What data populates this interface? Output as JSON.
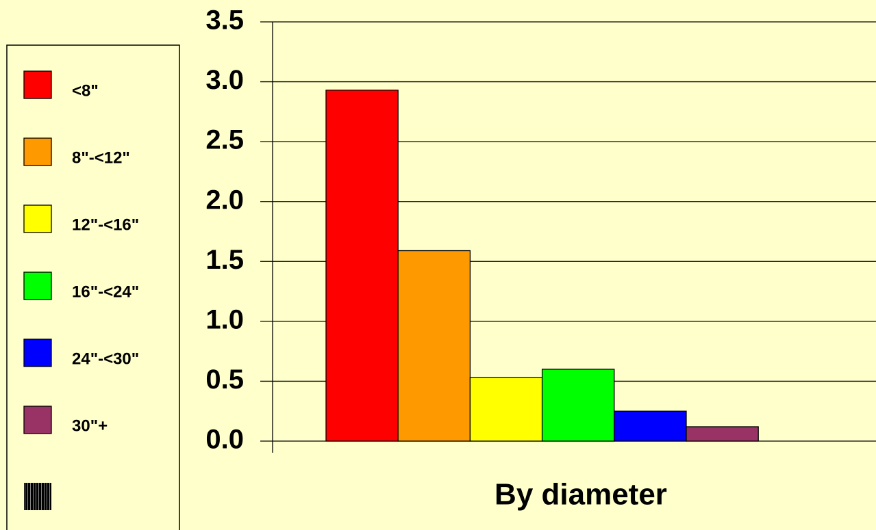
{
  "chart_data": {
    "type": "bar",
    "x_label": "By diameter",
    "series": [
      {
        "name": "<8\"",
        "color": "#ff0000",
        "values": [
          2.93
        ]
      },
      {
        "name": "8\"-<12\"",
        "color": "#ff9900",
        "values": [
          1.59
        ]
      },
      {
        "name": "12\"-<16\"",
        "color": "#ffff00",
        "values": [
          0.53
        ]
      },
      {
        "name": "16\"-<24\"",
        "color": "#00ff00",
        "values": [
          0.6
        ]
      },
      {
        "name": "24\"-<30\"",
        "color": "#0000ff",
        "values": [
          0.25
        ]
      },
      {
        "name": "30\"+",
        "color": "#993366",
        "values": [
          0.12
        ]
      }
    ],
    "ylim": [
      0,
      3.5
    ],
    "yticks": [
      {
        "value": 0,
        "label": "0.0"
      },
      {
        "value": 0.5,
        "label": "0.5"
      },
      {
        "value": 1,
        "label": "1.0"
      },
      {
        "value": 1.5,
        "label": "1.5"
      },
      {
        "value": 2,
        "label": "2.0"
      },
      {
        "value": 2.5,
        "label": "2.5"
      },
      {
        "value": 3,
        "label": "3.0"
      },
      {
        "value": 3.5,
        "label": "3.5"
      }
    ],
    "grid": true,
    "legend": "left"
  }
}
